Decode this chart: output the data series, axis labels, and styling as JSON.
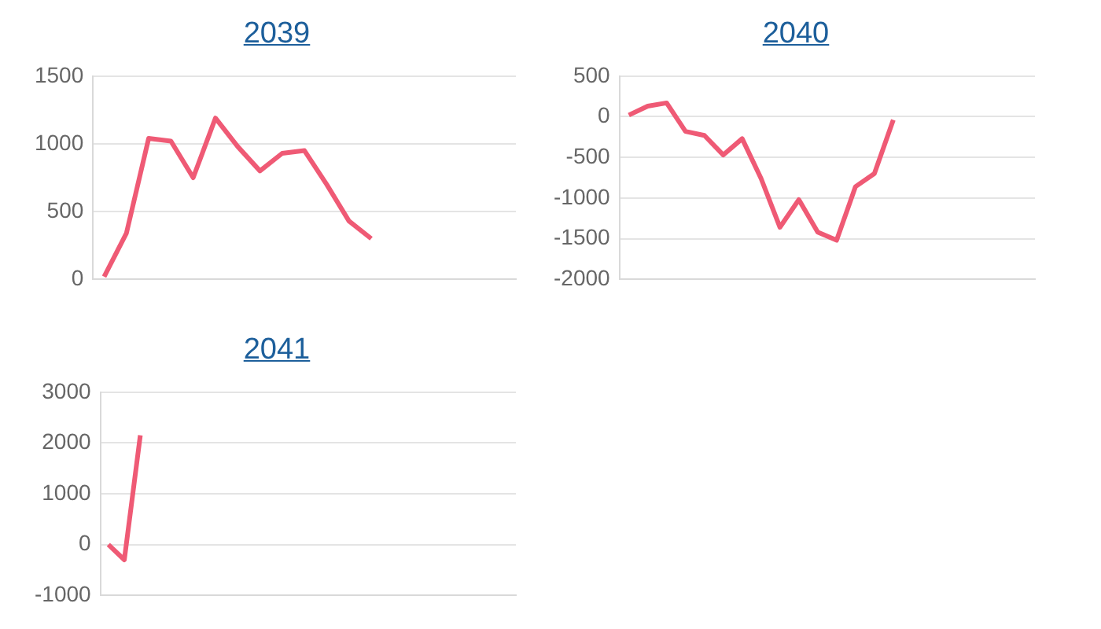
{
  "chart_data": [
    {
      "type": "line",
      "title": "2039",
      "categories": [
        null,
        null,
        null,
        null,
        null,
        null,
        null,
        null,
        null,
        null,
        null,
        null,
        null,
        null,
        null,
        null,
        null,
        null,
        null
      ],
      "series": [
        {
          "color": "#ef5a75",
          "values": [
            20,
            340,
            1040,
            1020,
            750,
            1190,
            980,
            800,
            930,
            950,
            700,
            430,
            300,
            null,
            null,
            null,
            null,
            null,
            null
          ]
        }
      ],
      "ylim": [
        0,
        1500
      ],
      "yticks": [
        0,
        500,
        1000,
        1500
      ],
      "grid": "y",
      "tick_labels": "y",
      "marker": "none",
      "line_style": "solid"
    },
    {
      "type": "line",
      "title": "2040",
      "categories": [
        null,
        null,
        null,
        null,
        null,
        null,
        null,
        null,
        null,
        null,
        null,
        null,
        null,
        null,
        null,
        null,
        null,
        null,
        null,
        null,
        null,
        null
      ],
      "series": [
        {
          "color": "#ef5a75",
          "values": [
            20,
            130,
            170,
            -180,
            -230,
            -470,
            -270,
            -760,
            -1360,
            -1020,
            -1420,
            -1520,
            -860,
            -700,
            -40,
            null,
            null,
            null,
            null,
            null,
            null,
            null
          ]
        }
      ],
      "ylim": [
        -2000,
        500
      ],
      "yticks": [
        -2000,
        -1500,
        -1000,
        -500,
        0,
        500
      ],
      "grid": "y",
      "tick_labels": "y",
      "marker": "none",
      "line_style": "solid"
    },
    {
      "type": "line",
      "title": "2041",
      "categories": [
        null,
        null,
        null,
        null,
        null,
        null,
        null,
        null,
        null,
        null,
        null,
        null,
        null,
        null,
        null,
        null,
        null,
        null,
        null,
        null,
        null,
        null,
        null,
        null,
        null,
        null
      ],
      "series": [
        {
          "color": "#ef5a75",
          "values": [
            0,
            -300,
            2150,
            null,
            null,
            null,
            null,
            null,
            null,
            null,
            null,
            null,
            null,
            null,
            null,
            null,
            null,
            null,
            null,
            null,
            null,
            null,
            null,
            null,
            null,
            null
          ]
        }
      ],
      "ylim": [
        -1000,
        3000
      ],
      "yticks": [
        -1000,
        0,
        1000,
        2000,
        3000
      ],
      "grid": "y",
      "tick_labels": "y",
      "marker": "none",
      "line_style": "solid"
    }
  ]
}
